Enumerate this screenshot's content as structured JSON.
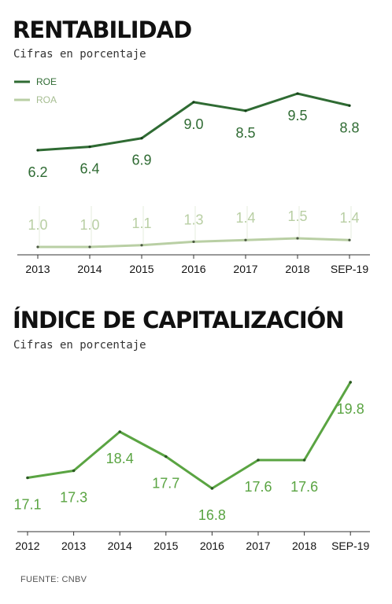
{
  "source_note": "FUENTE: CNBV",
  "colors": {
    "roe": "#2f6b33",
    "roa": "#b9cfa4",
    "cap": "#5aa442",
    "axis": "#333333",
    "text": "#111111"
  },
  "chart_data": [
    {
      "type": "line",
      "title": "RENTABILIDAD",
      "subtitle": "Cifras en porcentaje",
      "legend_position": "top-left",
      "grid": false,
      "categories": [
        "2013",
        "2014",
        "2015",
        "2016",
        "2017",
        "2018",
        "SEP-19"
      ],
      "series": [
        {
          "name": "ROE",
          "color": "#2f6b33",
          "values": [
            6.2,
            6.4,
            6.9,
            9.0,
            8.5,
            9.5,
            8.8
          ],
          "labels": [
            "6.2",
            "6.4",
            "6.9",
            "9.0",
            "8.5",
            "9.5",
            "8.8"
          ]
        },
        {
          "name": "ROA",
          "color": "#b9cfa4",
          "values": [
            1.0,
            1.0,
            1.1,
            1.3,
            1.4,
            1.5,
            1.4
          ],
          "labels": [
            "1.0",
            "1.0",
            "1.1",
            "1.3",
            "1.4",
            "1.5",
            "1.4"
          ]
        }
      ]
    },
    {
      "type": "line",
      "title": "ÍNDICE DE CAPITALIZACIÓN",
      "subtitle": "Cifras en porcentaje",
      "grid": false,
      "categories": [
        "2012",
        "2013",
        "2014",
        "2015",
        "2016",
        "2017",
        "2018",
        "SEP-19"
      ],
      "series": [
        {
          "name": "",
          "color": "#5aa442",
          "values": [
            17.1,
            17.3,
            18.4,
            17.7,
            16.8,
            17.6,
            17.6,
            19.8
          ],
          "labels": [
            "17.1",
            "17.3",
            "18.4",
            "17.7",
            "16.8",
            "17.6",
            "17.6",
            "19.8"
          ]
        }
      ]
    }
  ]
}
